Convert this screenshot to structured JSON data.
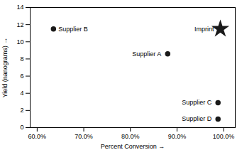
{
  "chart_data": {
    "type": "scatter",
    "x": [
      0.635,
      0.88,
      0.993,
      0.988,
      0.988
    ],
    "values": [
      11.5,
      8.6,
      11.5,
      2.9,
      1.0
    ],
    "labels": [
      "Supplier B",
      "Supplier A",
      "Imprint",
      "Supplier C",
      "Supplier D"
    ],
    "markers": [
      "circle",
      "circle",
      "star",
      "circle",
      "circle"
    ],
    "color": "#1a1a1a",
    "xlabel": "Percent Conversion",
    "ylabel": "Yield (nanograms)",
    "xlim": [
      0.585,
      1.025
    ],
    "ylim": [
      0,
      14
    ],
    "xticks": [
      {
        "value": 0.6,
        "label": "60.0%"
      },
      {
        "value": 0.7,
        "label": "70.0%"
      },
      {
        "value": 0.8,
        "label": "80.0%"
      },
      {
        "value": 0.9,
        "label": "90.0%"
      },
      {
        "value": 1.0,
        "label": "100.0%"
      }
    ],
    "yticks": [
      0,
      2,
      4,
      6,
      8,
      10,
      12,
      14
    ],
    "grid": false
  }
}
